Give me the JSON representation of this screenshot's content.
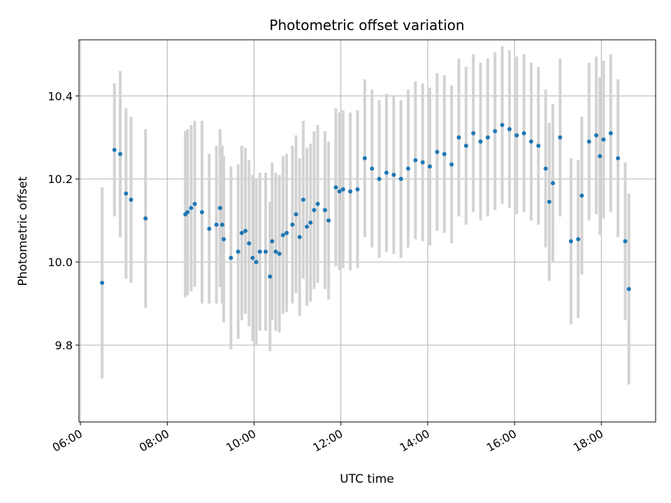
{
  "chart_data": {
    "type": "scatter",
    "title": "Photometric offset variation",
    "xlabel": "UTC time",
    "ylabel": "Photometric offset",
    "x_axis_type": "time",
    "xlim": [
      "05:58",
      "19:15"
    ],
    "ylim": [
      9.615,
      10.535
    ],
    "x_ticks": [
      "06:00",
      "08:00",
      "10:00",
      "12:00",
      "14:00",
      "16:00",
      "18:00"
    ],
    "y_ticks": [
      "9.8",
      "10.0",
      "10.2",
      "10.4"
    ],
    "grid": true,
    "legend": "none",
    "colors": {
      "point": "#1f77b4",
      "errorbar": "#d3d3d3",
      "grid": "#b0b0b0"
    },
    "series": [
      {
        "marker": "point",
        "error_bars": "y",
        "points": [
          [
            "06:30",
            9.95,
            0.23
          ],
          [
            "06:47",
            10.27,
            0.16
          ],
          [
            "06:55",
            10.26,
            0.2
          ],
          [
            "07:03",
            10.165,
            0.205
          ],
          [
            "07:10",
            10.15,
            0.2
          ],
          [
            "07:30",
            10.105,
            0.215
          ],
          [
            "08:25",
            10.115,
            0.2
          ],
          [
            "08:28",
            10.12,
            0.2
          ],
          [
            "08:33",
            10.13,
            0.2
          ],
          [
            "08:38",
            10.14,
            0.2
          ],
          [
            "08:48",
            10.12,
            0.22
          ],
          [
            "08:58",
            10.08,
            0.18
          ],
          [
            "09:08",
            10.09,
            0.19
          ],
          [
            "09:13",
            10.13,
            0.19
          ],
          [
            "09:16",
            10.09,
            0.19
          ],
          [
            "09:18",
            10.055,
            0.2
          ],
          [
            "09:28",
            10.01,
            0.22
          ],
          [
            "09:38",
            10.025,
            0.21
          ],
          [
            "09:43",
            10.07,
            0.21
          ],
          [
            "09:48",
            10.075,
            0.2
          ],
          [
            "09:53",
            10.045,
            0.2
          ],
          [
            "09:58",
            10.01,
            0.2
          ],
          [
            "10:03",
            10.0,
            0.2
          ],
          [
            "10:08",
            10.025,
            0.19
          ],
          [
            "10:16",
            10.025,
            0.19
          ],
          [
            "10:22",
            9.965,
            0.18
          ],
          [
            "10:25",
            10.05,
            0.19
          ],
          [
            "10:30",
            10.025,
            0.19
          ],
          [
            "10:35",
            10.02,
            0.19
          ],
          [
            "10:40",
            10.065,
            0.19
          ],
          [
            "10:45",
            10.07,
            0.19
          ],
          [
            "10:53",
            10.09,
            0.19
          ],
          [
            "10:58",
            10.115,
            0.19
          ],
          [
            "11:03",
            10.06,
            0.19
          ],
          [
            "11:08",
            10.15,
            0.19
          ],
          [
            "11:13",
            10.085,
            0.19
          ],
          [
            "11:18",
            10.095,
            0.19
          ],
          [
            "11:23",
            10.125,
            0.19
          ],
          [
            "11:28",
            10.14,
            0.19
          ],
          [
            "11:38",
            10.125,
            0.19
          ],
          [
            "11:43",
            10.1,
            0.19
          ],
          [
            "11:53",
            10.18,
            0.19
          ],
          [
            "11:58",
            10.17,
            0.19
          ],
          [
            "12:03",
            10.175,
            0.19
          ],
          [
            "12:13",
            10.17,
            0.19
          ],
          [
            "12:23",
            10.175,
            0.19
          ],
          [
            "12:33",
            10.25,
            0.19
          ],
          [
            "12:43",
            10.225,
            0.19
          ],
          [
            "12:53",
            10.2,
            0.19
          ],
          [
            "13:03",
            10.215,
            0.19
          ],
          [
            "13:13",
            10.21,
            0.19
          ],
          [
            "13:23",
            10.2,
            0.19
          ],
          [
            "13:33",
            10.225,
            0.19
          ],
          [
            "13:43",
            10.245,
            0.19
          ],
          [
            "13:53",
            10.24,
            0.19
          ],
          [
            "14:03",
            10.23,
            0.19
          ],
          [
            "14:13",
            10.265,
            0.19
          ],
          [
            "14:23",
            10.26,
            0.19
          ],
          [
            "14:33",
            10.235,
            0.19
          ],
          [
            "14:43",
            10.3,
            0.19
          ],
          [
            "14:53",
            10.28,
            0.19
          ],
          [
            "15:03",
            10.31,
            0.19
          ],
          [
            "15:13",
            10.29,
            0.19
          ],
          [
            "15:23",
            10.3,
            0.19
          ],
          [
            "15:33",
            10.315,
            0.19
          ],
          [
            "15:43",
            10.33,
            0.19
          ],
          [
            "15:53",
            10.32,
            0.19
          ],
          [
            "16:03",
            10.305,
            0.19
          ],
          [
            "16:13",
            10.31,
            0.19
          ],
          [
            "16:23",
            10.29,
            0.19
          ],
          [
            "16:33",
            10.28,
            0.19
          ],
          [
            "16:43",
            10.225,
            0.19
          ],
          [
            "16:48",
            10.145,
            0.19
          ],
          [
            "16:53",
            10.19,
            0.19
          ],
          [
            "17:03",
            10.3,
            0.19
          ],
          [
            "17:18",
            10.05,
            0.2
          ],
          [
            "17:28",
            10.055,
            0.19
          ],
          [
            "17:33",
            10.16,
            0.19
          ],
          [
            "17:43",
            10.29,
            0.19
          ],
          [
            "17:53",
            10.305,
            0.19
          ],
          [
            "17:58",
            10.255,
            0.19
          ],
          [
            "18:03",
            10.295,
            0.19
          ],
          [
            "18:13",
            10.31,
            0.19
          ],
          [
            "18:23",
            10.25,
            0.19
          ],
          [
            "18:33",
            10.05,
            0.19
          ],
          [
            "18:38",
            9.935,
            0.23
          ]
        ]
      }
    ]
  }
}
